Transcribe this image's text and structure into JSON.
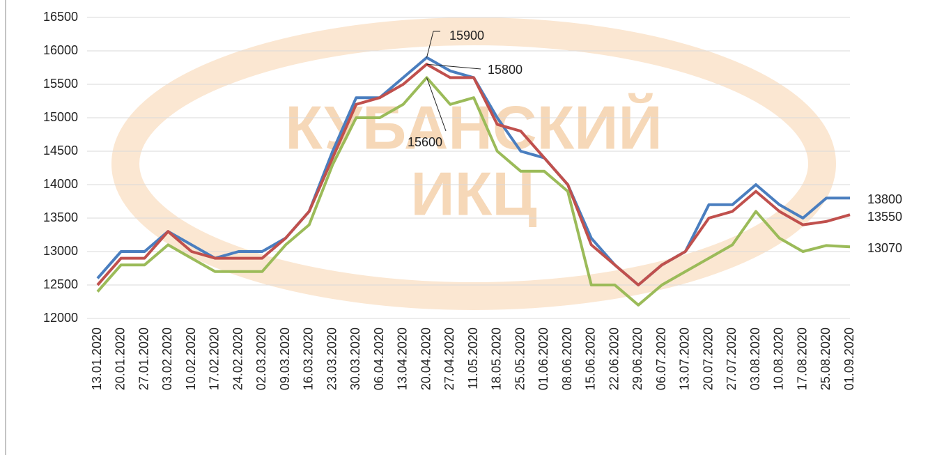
{
  "chart_data": {
    "type": "line",
    "watermark": [
      "КУБАНСКИЙ",
      "ИКЦ"
    ],
    "categories": [
      "13.01.2020",
      "20.01.2020",
      "27.01.2020",
      "03.02.2020",
      "10.02.2020",
      "17.02.2020",
      "24.02.2020",
      "02.03.2020",
      "09.03.2020",
      "16.03.2020",
      "23.03.2020",
      "30.03.2020",
      "06.04.2020",
      "13.04.2020",
      "20.04.2020",
      "27.04.2020",
      "11.05.2020",
      "18.05.2020",
      "25.05.2020",
      "01.06.2020",
      "08.06.2020",
      "15.06.2020",
      "22.06.2020",
      "29.06.2020",
      "06.07.2020",
      "13.07.2020",
      "20.07.2020",
      "27.07.2020",
      "03.08.2020",
      "10.08.2020",
      "17.08.2020",
      "25.08.2020",
      "01.09.2020"
    ],
    "series": [
      {
        "color": "#4a7ebf",
        "values": [
          12600,
          13000,
          13000,
          13300,
          13100,
          12900,
          13000,
          13000,
          13200,
          13600,
          14500,
          15300,
          15300,
          15600,
          15900,
          15700,
          15600,
          15000,
          14500,
          14400,
          14000,
          13200,
          12800,
          12500,
          12800,
          13000,
          13700,
          13700,
          14000,
          13700,
          13500,
          13800,
          13800
        ]
      },
      {
        "color": "#c0504d",
        "values": [
          12500,
          12900,
          12900,
          13300,
          13000,
          12900,
          12900,
          12900,
          13200,
          13600,
          14400,
          15200,
          15300,
          15500,
          15800,
          15600,
          15600,
          14900,
          14800,
          14400,
          14000,
          13100,
          12800,
          12500,
          12800,
          13000,
          13500,
          13600,
          13900,
          13600,
          13400,
          13450,
          13550
        ]
      },
      {
        "color": "#9bbb59",
        "values": [
          12400,
          12800,
          12800,
          13100,
          12900,
          12700,
          12700,
          12700,
          13100,
          13400,
          14300,
          15000,
          15000,
          15200,
          15600,
          15200,
          15300,
          14500,
          14200,
          14200,
          13900,
          12500,
          12500,
          12200,
          12500,
          12700,
          12900,
          13100,
          13600,
          13200,
          13000,
          13090,
          13070
        ]
      }
    ],
    "ylim": [
      12000,
      16500
    ],
    "yticks": [
      12000,
      12500,
      13000,
      13500,
      14000,
      14500,
      15000,
      15500,
      16000,
      16500
    ],
    "grid": true
  }
}
